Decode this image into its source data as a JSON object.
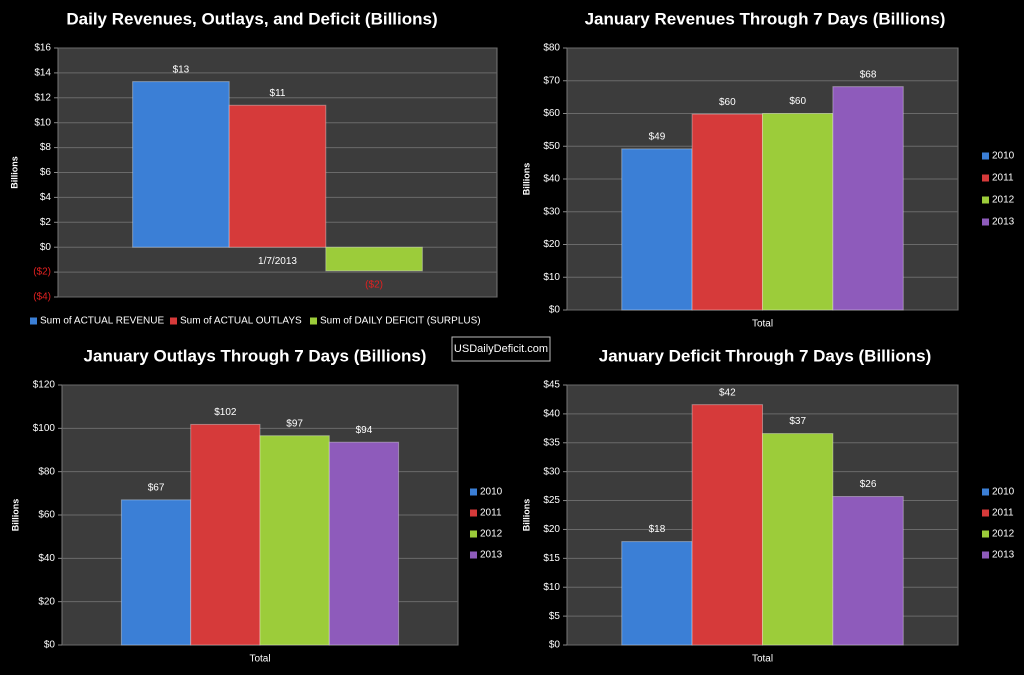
{
  "site_label": "USDailyDeficit.com",
  "chart_data": [
    {
      "type": "bar",
      "title": "Daily Revenues, Outlays, and Deficit (Billions)",
      "ylabel": "Billions",
      "categories": [
        "1/7/2013"
      ],
      "series": [
        {
          "name": "Sum of ACTUAL REVENUE",
          "color": "#3b7fd6",
          "values": [
            13.3
          ],
          "value_labels": [
            "$13"
          ]
        },
        {
          "name": "Sum of ACTUAL OUTLAYS",
          "color": "#d63a3a",
          "values": [
            11.4
          ],
          "value_labels": [
            "$11"
          ]
        },
        {
          "name": "Sum of DAILY DEFICIT (SURPLUS)",
          "color": "#9ccc3a",
          "values": [
            -1.9
          ],
          "value_labels": [
            "($2)"
          ]
        }
      ],
      "ylim": [
        -4,
        16
      ],
      "yticks": [
        {
          "value": -4,
          "label": "($4)"
        },
        {
          "value": -2,
          "label": "($2)"
        },
        {
          "value": 0,
          "label": "$0"
        },
        {
          "value": 2,
          "label": "$2"
        },
        {
          "value": 4,
          "label": "$4"
        },
        {
          "value": 6,
          "label": "$6"
        },
        {
          "value": 8,
          "label": "$8"
        },
        {
          "value": 10,
          "label": "$10"
        },
        {
          "value": 12,
          "label": "$12"
        },
        {
          "value": 14,
          "label": "$14"
        },
        {
          "value": 16,
          "label": "$16"
        }
      ],
      "grid": true,
      "legend": "bottom"
    },
    {
      "type": "bar",
      "title": "January Revenues Through 7 Days (Billions)",
      "ylabel": "Billions",
      "categories": [
        "Total"
      ],
      "series": [
        {
          "name": "2010",
          "color": "#3b7fd6",
          "values": [
            49.2
          ],
          "value_labels": [
            "$49"
          ]
        },
        {
          "name": "2011",
          "color": "#d63a3a",
          "values": [
            59.8
          ],
          "value_labels": [
            "$60"
          ]
        },
        {
          "name": "2012",
          "color": "#9ccc3a",
          "values": [
            60.0
          ],
          "value_labels": [
            "$60"
          ]
        },
        {
          "name": "2013",
          "color": "#8e5bbb",
          "values": [
            68.2
          ],
          "value_labels": [
            "$68"
          ]
        }
      ],
      "ylim": [
        0,
        80
      ],
      "yticks": [
        {
          "value": 0,
          "label": "$0"
        },
        {
          "value": 10,
          "label": "$10"
        },
        {
          "value": 20,
          "label": "$20"
        },
        {
          "value": 30,
          "label": "$30"
        },
        {
          "value": 40,
          "label": "$40"
        },
        {
          "value": 50,
          "label": "$50"
        },
        {
          "value": 60,
          "label": "$60"
        },
        {
          "value": 70,
          "label": "$70"
        },
        {
          "value": 80,
          "label": "$80"
        }
      ],
      "grid": true,
      "legend": "right"
    },
    {
      "type": "bar",
      "title": "January Outlays Through 7 Days (Billions)",
      "ylabel": "Billions",
      "categories": [
        "Total"
      ],
      "series": [
        {
          "name": "2010",
          "color": "#3b7fd6",
          "values": [
            67
          ],
          "value_labels": [
            "$67"
          ]
        },
        {
          "name": "2011",
          "color": "#d63a3a",
          "values": [
            101.8
          ],
          "value_labels": [
            "$102"
          ]
        },
        {
          "name": "2012",
          "color": "#9ccc3a",
          "values": [
            96.6
          ],
          "value_labels": [
            "$97"
          ]
        },
        {
          "name": "2013",
          "color": "#8e5bbb",
          "values": [
            93.6
          ],
          "value_labels": [
            "$94"
          ]
        }
      ],
      "ylim": [
        0,
        120
      ],
      "yticks": [
        {
          "value": 0,
          "label": "$0"
        },
        {
          "value": 20,
          "label": "$20"
        },
        {
          "value": 40,
          "label": "$40"
        },
        {
          "value": 60,
          "label": "$60"
        },
        {
          "value": 80,
          "label": "$80"
        },
        {
          "value": 100,
          "label": "$100"
        },
        {
          "value": 120,
          "label": "$120"
        }
      ],
      "grid": true,
      "legend": "right"
    },
    {
      "type": "bar",
      "title": "January Deficit Through 7 Days (Billions)",
      "ylabel": "Billions",
      "categories": [
        "Total"
      ],
      "series": [
        {
          "name": "2010",
          "color": "#3b7fd6",
          "values": [
            17.9
          ],
          "value_labels": [
            "$18"
          ]
        },
        {
          "name": "2011",
          "color": "#d63a3a",
          "values": [
            41.6
          ],
          "value_labels": [
            "$42"
          ]
        },
        {
          "name": "2012",
          "color": "#9ccc3a",
          "values": [
            36.6
          ],
          "value_labels": [
            "$37"
          ]
        },
        {
          "name": "2013",
          "color": "#8e5bbb",
          "values": [
            25.7
          ],
          "value_labels": [
            "$26"
          ]
        }
      ],
      "ylim": [
        0,
        45
      ],
      "yticks": [
        {
          "value": 0,
          "label": "$0"
        },
        {
          "value": 5,
          "label": "$5"
        },
        {
          "value": 10,
          "label": "$10"
        },
        {
          "value": 15,
          "label": "$15"
        },
        {
          "value": 20,
          "label": "$20"
        },
        {
          "value": 25,
          "label": "$25"
        },
        {
          "value": 30,
          "label": "$30"
        },
        {
          "value": 35,
          "label": "$35"
        },
        {
          "value": 40,
          "label": "$40"
        },
        {
          "value": 45,
          "label": "$45"
        }
      ],
      "grid": true,
      "legend": "right"
    }
  ]
}
